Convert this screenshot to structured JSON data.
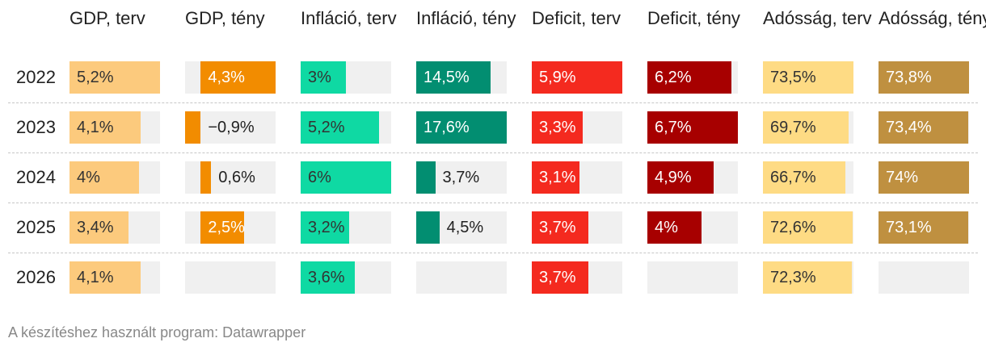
{
  "chart_data": {
    "type": "table",
    "title": "",
    "footer": "A készítéshez használt program: Datawrapper",
    "years": [
      "2022",
      "2023",
      "2024",
      "2025",
      "2026"
    ],
    "columns": [
      {
        "key": "gdp_terv",
        "label": "GDP, terv",
        "color": "#fcca7d",
        "text_color": "#333333",
        "min": 0,
        "max": 5.2,
        "values": [
          5.2,
          4.1,
          4,
          3.4,
          4.1
        ],
        "labels": [
          "5,2%",
          "4,1%",
          "4%",
          "3,4%",
          "4,1%"
        ]
      },
      {
        "key": "gdp_teny",
        "label": "GDP, tény",
        "color": "#f28c00",
        "text_color": "#ffffff",
        "min": -0.9,
        "max": 4.3,
        "values": [
          4.3,
          -0.9,
          0.6,
          2.5,
          null
        ],
        "labels": [
          "4,3%",
          "−0,9%",
          "0,6%",
          "2,5%",
          ""
        ]
      },
      {
        "key": "inf_terv",
        "label": "Infláció, terv",
        "color": "#0fd9a3",
        "text_color": "#333333",
        "min": 0,
        "max": 6,
        "values": [
          3,
          5.2,
          6,
          3.2,
          3.6
        ],
        "labels": [
          "3%",
          "5,2%",
          "6%",
          "3,2%",
          "3,6%"
        ]
      },
      {
        "key": "inf_teny",
        "label": "Infláció, tény",
        "color": "#028e71",
        "text_color": "#ffffff",
        "min": 0,
        "max": 17.6,
        "values": [
          14.5,
          17.6,
          3.7,
          4.5,
          null
        ],
        "labels": [
          "14,5%",
          "17,6%",
          "3,7%",
          "4,5%",
          ""
        ]
      },
      {
        "key": "def_terv",
        "label": "Deficit, terv",
        "color": "#f42a1f",
        "text_color": "#ffffff",
        "min": 0,
        "max": 5.9,
        "values": [
          5.9,
          3.3,
          3.1,
          3.7,
          3.7
        ],
        "labels": [
          "5,9%",
          "3,3%",
          "3,1%",
          "3,7%",
          "3,7%"
        ]
      },
      {
        "key": "def_teny",
        "label": "Deficit, tény",
        "color": "#a70000",
        "text_color": "#ffffff",
        "min": 0,
        "max": 6.7,
        "values": [
          6.2,
          6.7,
          4.9,
          4,
          null
        ],
        "labels": [
          "6,2%",
          "6,7%",
          "4,9%",
          "4%",
          ""
        ]
      },
      {
        "key": "ado_terv",
        "label": "Adósság, terv",
        "color": "#fedb84",
        "text_color": "#333333",
        "min": 0,
        "max": 73.5,
        "values": [
          73.5,
          69.7,
          66.7,
          72.6,
          72.3
        ],
        "labels": [
          "73,5%",
          "69,7%",
          "66,7%",
          "72,6%",
          "72,3%"
        ]
      },
      {
        "key": "ado_teny",
        "label": "Adósság, tény",
        "color": "#bf9040",
        "text_color": "#ffffff",
        "min": 0,
        "max": 74,
        "values": [
          73.8,
          73.4,
          74,
          73.1,
          null
        ],
        "labels": [
          "73,8%",
          "73,4%",
          "74%",
          "73,1%",
          ""
        ]
      }
    ]
  }
}
